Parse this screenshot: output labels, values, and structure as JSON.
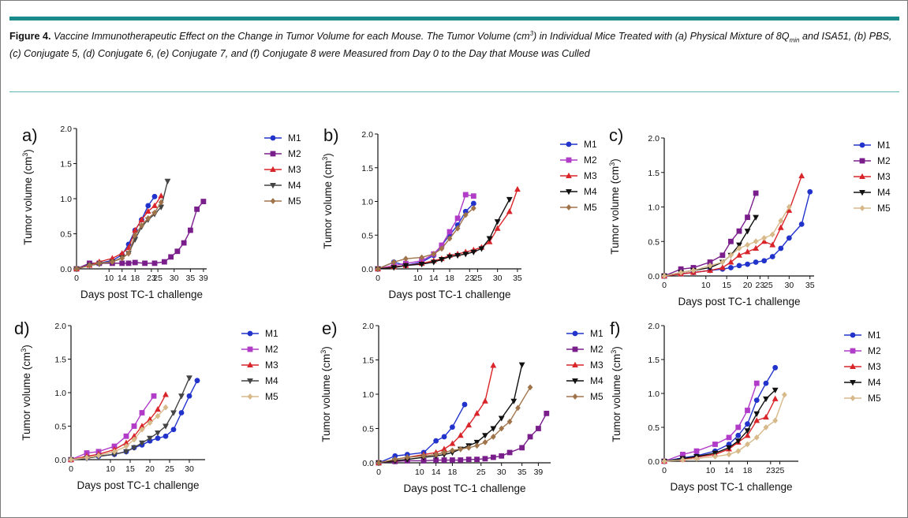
{
  "caption": {
    "label": "Figure 4.",
    "text_1": " Vaccine Immunotherapeutic Effect on the Change in Tumor Volume for each Mouse. The Tumor Volume (cm",
    "sup": "3",
    "text_2": ") in Individual Mice Treated with (a) Physical Mixture of 8Q",
    "sub": "min",
    "text_3": " and ISA51, (b) PBS, (c) Conjugate 5, (d) Conjugate 6, (e) Conjugate 7, and (f) Conjugate 8 were Measured from Day 0 to the Day that Mouse was Culled"
  },
  "colors": {
    "M1": "#2233cc",
    "M2": "#7a1e8c",
    "M3": "#d9252a",
    "M4": "#111111",
    "M5": "#a0744a"
  },
  "chart_data": [
    {
      "panel": "a)",
      "type": "line",
      "xlabel": "Days post TC-1 challenge",
      "ylabel": "Tumor volume (cm3)",
      "xlim": [
        0,
        40
      ],
      "ylim": [
        0,
        2.0
      ],
      "xticks": [
        0,
        10,
        14,
        18,
        23,
        25,
        30,
        35,
        39
      ],
      "yticks": [
        0.0,
        0.5,
        1.0,
        1.5,
        2.0
      ],
      "series": [
        {
          "name": "M1",
          "marker": "circle",
          "color": "#2233cc",
          "x": [
            0,
            4,
            7,
            11,
            14,
            16,
            18,
            20,
            22,
            24
          ],
          "y": [
            0,
            0.06,
            0.08,
            0.12,
            0.2,
            0.35,
            0.55,
            0.7,
            0.9,
            1.03
          ]
        },
        {
          "name": "M2",
          "marker": "square",
          "color": "#7a1e8c",
          "x": [
            0,
            4,
            7,
            11,
            14,
            16,
            18,
            21,
            24,
            27,
            29,
            31,
            33,
            35,
            37,
            39
          ],
          "y": [
            0,
            0.08,
            0.08,
            0.08,
            0.08,
            0.08,
            0.09,
            0.08,
            0.08,
            0.1,
            0.17,
            0.25,
            0.37,
            0.55,
            0.85,
            0.96
          ]
        },
        {
          "name": "M3",
          "marker": "triangle",
          "color": "#d9252a",
          "x": [
            0,
            4,
            7,
            11,
            14,
            16,
            18,
            20,
            22,
            24,
            26
          ],
          "y": [
            0,
            0.05,
            0.1,
            0.15,
            0.22,
            0.3,
            0.55,
            0.7,
            0.82,
            0.9,
            1.04
          ]
        },
        {
          "name": "M4",
          "marker": "triangle-down",
          "color": "#444444",
          "x": [
            0,
            4,
            7,
            11,
            14,
            16,
            18,
            20,
            22,
            24,
            26,
            28
          ],
          "y": [
            0,
            0.05,
            0.07,
            0.1,
            0.16,
            0.22,
            0.42,
            0.6,
            0.7,
            0.78,
            0.88,
            1.25
          ]
        },
        {
          "name": "M5",
          "marker": "diamond",
          "color": "#a0744a",
          "x": [
            0,
            4,
            7,
            11,
            14,
            16,
            18,
            20,
            22,
            24,
            26
          ],
          "y": [
            0,
            0.05,
            0.08,
            0.1,
            0.15,
            0.22,
            0.48,
            0.62,
            0.72,
            0.8,
            0.95
          ]
        }
      ]
    },
    {
      "panel": "b)",
      "type": "line",
      "xlabel": "Days post TC-1 challenge",
      "ylabel": "Tumor volume (cm3)",
      "xlim": [
        0,
        36
      ],
      "ylim": [
        0,
        2.0
      ],
      "xticks": [
        0,
        10,
        14,
        18,
        23,
        25,
        30,
        35
      ],
      "yticks": [
        0.0,
        0.5,
        1.0,
        1.5,
        2.0
      ],
      "series": [
        {
          "name": "M1",
          "marker": "circle",
          "color": "#2233cc",
          "x": [
            0,
            4,
            7,
            11,
            14,
            16,
            18,
            20,
            22,
            24
          ],
          "y": [
            0,
            0.1,
            0.05,
            0.1,
            0.2,
            0.35,
            0.5,
            0.65,
            0.85,
            0.97
          ]
        },
        {
          "name": "M2",
          "marker": "square",
          "color": "#b03cc8",
          "x": [
            0,
            4,
            7,
            11,
            14,
            16,
            18,
            20,
            22,
            24
          ],
          "y": [
            0,
            0.05,
            0.08,
            0.12,
            0.22,
            0.35,
            0.55,
            0.75,
            1.1,
            1.08
          ]
        },
        {
          "name": "M3",
          "marker": "triangle",
          "color": "#d9252a",
          "x": [
            0,
            4,
            7,
            11,
            14,
            16,
            18,
            20,
            22,
            24,
            26,
            28,
            30,
            33,
            35
          ],
          "y": [
            0,
            0.03,
            0.05,
            0.08,
            0.12,
            0.15,
            0.2,
            0.22,
            0.25,
            0.28,
            0.32,
            0.4,
            0.6,
            0.85,
            1.18
          ]
        },
        {
          "name": "M4",
          "marker": "triangle-down",
          "color": "#111111",
          "x": [
            0,
            4,
            7,
            11,
            14,
            16,
            18,
            20,
            22,
            24,
            26,
            28,
            30,
            33
          ],
          "y": [
            0,
            0.02,
            0.05,
            0.07,
            0.1,
            0.14,
            0.18,
            0.2,
            0.22,
            0.25,
            0.3,
            0.45,
            0.7,
            1.03
          ]
        },
        {
          "name": "M5",
          "marker": "diamond",
          "color": "#a0744a",
          "x": [
            0,
            4,
            7,
            11,
            14,
            16,
            18,
            20,
            22,
            24
          ],
          "y": [
            0,
            0.1,
            0.15,
            0.17,
            0.22,
            0.3,
            0.45,
            0.6,
            0.8,
            0.9
          ]
        }
      ]
    },
    {
      "panel": "c)",
      "type": "line",
      "xlabel": "Days post TC-1 challenge",
      "ylabel": "Tumor volume (cm3)",
      "xlim": [
        0,
        36
      ],
      "ylim": [
        0,
        2.0
      ],
      "xticks": [
        0,
        10,
        15,
        20,
        23,
        25,
        30,
        35
      ],
      "yticks": [
        0.0,
        0.5,
        1.0,
        1.5,
        2.0
      ],
      "series": [
        {
          "name": "M1",
          "marker": "circle",
          "color": "#2233cc",
          "x": [
            0,
            4,
            7,
            11,
            14,
            16,
            18,
            20,
            22,
            24,
            26,
            28,
            30,
            33,
            35
          ],
          "y": [
            0,
            0.03,
            0.05,
            0.08,
            0.1,
            0.12,
            0.15,
            0.17,
            0.2,
            0.22,
            0.28,
            0.4,
            0.55,
            0.75,
            1.22
          ]
        },
        {
          "name": "M2",
          "marker": "square",
          "color": "#7a1e8c",
          "x": [
            0,
            4,
            7,
            11,
            14,
            16,
            18,
            20,
            22
          ],
          "y": [
            0,
            0.1,
            0.12,
            0.2,
            0.3,
            0.5,
            0.65,
            0.85,
            1.2
          ]
        },
        {
          "name": "M3",
          "marker": "triangle",
          "color": "#d9252a",
          "x": [
            0,
            4,
            7,
            11,
            14,
            16,
            18,
            20,
            22,
            24,
            26,
            28,
            30,
            33
          ],
          "y": [
            0,
            0.03,
            0.05,
            0.08,
            0.12,
            0.2,
            0.3,
            0.35,
            0.4,
            0.5,
            0.45,
            0.7,
            0.95,
            1.45
          ]
        },
        {
          "name": "M4",
          "marker": "triangle-down",
          "color": "#111111",
          "x": [
            0,
            4,
            7,
            11,
            14,
            16,
            18,
            20,
            22
          ],
          "y": [
            0,
            0.05,
            0.08,
            0.12,
            0.2,
            0.3,
            0.45,
            0.65,
            0.85
          ]
        },
        {
          "name": "M5",
          "marker": "diamond",
          "color": "#d7b98a",
          "x": [
            0,
            4,
            7,
            11,
            14,
            16,
            18,
            20,
            22,
            24,
            26,
            28,
            30
          ],
          "y": [
            0,
            0.05,
            0.08,
            0.15,
            0.2,
            0.3,
            0.4,
            0.45,
            0.5,
            0.55,
            0.6,
            0.8,
            1.0
          ]
        }
      ]
    },
    {
      "panel": "d)",
      "type": "line",
      "xlabel": "Days post TC-1 challenge",
      "ylabel": "Tumor volume (cm3)",
      "xlim": [
        0,
        34
      ],
      "ylim": [
        0,
        2.0
      ],
      "xticks": [
        0,
        10,
        15,
        20,
        25,
        30
      ],
      "yticks": [
        0.0,
        0.5,
        1.0,
        1.5,
        2.0
      ],
      "series": [
        {
          "name": "M1",
          "marker": "circle",
          "color": "#2233cc",
          "x": [
            0,
            4,
            7,
            11,
            14,
            16,
            18,
            20,
            22,
            24,
            26,
            28,
            30,
            32
          ],
          "y": [
            0,
            0.03,
            0.05,
            0.08,
            0.12,
            0.18,
            0.22,
            0.28,
            0.32,
            0.35,
            0.45,
            0.7,
            0.95,
            1.18
          ]
        },
        {
          "name": "M2",
          "marker": "square",
          "color": "#b03cc8",
          "x": [
            0,
            4,
            7,
            11,
            14,
            16,
            18,
            21
          ],
          "y": [
            0,
            0.1,
            0.12,
            0.2,
            0.35,
            0.5,
            0.7,
            0.95
          ]
        },
        {
          "name": "M3",
          "marker": "triangle",
          "color": "#d9252a",
          "x": [
            0,
            4,
            7,
            11,
            14,
            16,
            18,
            20,
            22,
            24
          ],
          "y": [
            0,
            0.05,
            0.08,
            0.15,
            0.25,
            0.35,
            0.5,
            0.6,
            0.75,
            0.97
          ]
        },
        {
          "name": "M4",
          "marker": "triangle-down",
          "color": "#444444",
          "x": [
            0,
            4,
            7,
            11,
            14,
            16,
            18,
            20,
            22,
            24,
            26,
            28,
            30
          ],
          "y": [
            0,
            0.02,
            0.05,
            0.08,
            0.12,
            0.18,
            0.25,
            0.32,
            0.4,
            0.5,
            0.7,
            0.95,
            1.22
          ]
        },
        {
          "name": "M5",
          "marker": "diamond",
          "color": "#d7b98a",
          "x": [
            0,
            4,
            7,
            11,
            14,
            16,
            18,
            20,
            22,
            24
          ],
          "y": [
            0,
            0.03,
            0.06,
            0.12,
            0.2,
            0.3,
            0.45,
            0.55,
            0.65,
            0.78
          ]
        }
      ]
    },
    {
      "panel": "e)",
      "type": "line",
      "xlabel": "Days post TC-1 challenge",
      "ylabel": "Tumor volume (cm3)",
      "xlim": [
        0,
        42
      ],
      "ylim": [
        0,
        2.0
      ],
      "xticks": [
        0,
        10,
        14,
        18,
        25,
        30,
        35,
        39
      ],
      "yticks": [
        0.0,
        0.5,
        1.0,
        1.5,
        2.0
      ],
      "series": [
        {
          "name": "M1",
          "marker": "circle",
          "color": "#2233cc",
          "x": [
            0,
            4,
            7,
            11,
            14,
            16,
            18,
            21
          ],
          "y": [
            0,
            0.1,
            0.12,
            0.15,
            0.32,
            0.38,
            0.52,
            0.85
          ]
        },
        {
          "name": "M2",
          "marker": "square",
          "color": "#7a1e8c",
          "x": [
            0,
            4,
            7,
            11,
            14,
            16,
            18,
            20,
            22,
            24,
            26,
            28,
            30,
            32,
            35,
            37,
            39,
            41
          ],
          "y": [
            0,
            0.02,
            0.03,
            0.03,
            0.04,
            0.04,
            0.04,
            0.04,
            0.05,
            0.05,
            0.06,
            0.08,
            0.1,
            0.15,
            0.22,
            0.38,
            0.5,
            0.72
          ]
        },
        {
          "name": "M3",
          "marker": "triangle",
          "color": "#d9252a",
          "x": [
            0,
            4,
            7,
            11,
            14,
            16,
            18,
            20,
            22,
            24,
            26,
            28
          ],
          "y": [
            0,
            0.05,
            0.08,
            0.12,
            0.15,
            0.2,
            0.28,
            0.4,
            0.55,
            0.72,
            0.9,
            1.42
          ]
        },
        {
          "name": "M4",
          "marker": "triangle-down",
          "color": "#111111",
          "x": [
            0,
            4,
            7,
            11,
            14,
            16,
            18,
            20,
            22,
            24,
            26,
            28,
            30,
            33,
            35
          ],
          "y": [
            0,
            0.03,
            0.05,
            0.08,
            0.1,
            0.12,
            0.15,
            0.2,
            0.25,
            0.3,
            0.4,
            0.5,
            0.65,
            0.9,
            1.43
          ]
        },
        {
          "name": "M5",
          "marker": "diamond",
          "color": "#a0744a",
          "x": [
            0,
            4,
            7,
            11,
            14,
            16,
            18,
            20,
            22,
            24,
            26,
            28,
            30,
            32,
            34,
            37
          ],
          "y": [
            0,
            0.05,
            0.08,
            0.1,
            0.12,
            0.15,
            0.18,
            0.2,
            0.22,
            0.25,
            0.3,
            0.38,
            0.5,
            0.6,
            0.8,
            1.1
          ]
        }
      ]
    },
    {
      "panel": "f)",
      "type": "line",
      "xlabel": "Days post TC-1 challenge",
      "ylabel": "Tumor volume (cm3)",
      "xlim": [
        0,
        29
      ],
      "ylim": [
        0,
        2.0
      ],
      "xticks": [
        0,
        10,
        14,
        18,
        23,
        25
      ],
      "yticks": [
        0.0,
        0.5,
        1.0,
        1.5,
        2.0
      ],
      "series": [
        {
          "name": "M1",
          "marker": "circle",
          "color": "#2233cc",
          "x": [
            0,
            4,
            7,
            11,
            14,
            16,
            18,
            20,
            22,
            24
          ],
          "y": [
            0,
            0.05,
            0.08,
            0.15,
            0.25,
            0.38,
            0.55,
            0.9,
            1.15,
            1.38
          ]
        },
        {
          "name": "M2",
          "marker": "square",
          "color": "#b03cc8",
          "x": [
            0,
            4,
            7,
            11,
            14,
            16,
            18,
            20
          ],
          "y": [
            0,
            0.1,
            0.15,
            0.25,
            0.35,
            0.5,
            0.75,
            1.15
          ]
        },
        {
          "name": "M3",
          "marker": "triangle",
          "color": "#d9252a",
          "x": [
            0,
            4,
            7,
            11,
            14,
            16,
            18,
            20,
            22,
            24
          ],
          "y": [
            0,
            0.03,
            0.06,
            0.1,
            0.18,
            0.28,
            0.38,
            0.6,
            0.65,
            0.92
          ]
        },
        {
          "name": "M4",
          "marker": "triangle-down",
          "color": "#111111",
          "x": [
            0,
            4,
            7,
            11,
            14,
            16,
            18,
            20,
            22,
            24
          ],
          "y": [
            0,
            0.04,
            0.07,
            0.12,
            0.2,
            0.3,
            0.45,
            0.7,
            0.92,
            1.05
          ]
        },
        {
          "name": "M5",
          "marker": "diamond",
          "color": "#d7b98a",
          "x": [
            0,
            4,
            7,
            11,
            14,
            16,
            18,
            20,
            22,
            24,
            26
          ],
          "y": [
            0,
            0.02,
            0.04,
            0.07,
            0.1,
            0.15,
            0.25,
            0.35,
            0.5,
            0.6,
            0.98
          ]
        }
      ]
    }
  ]
}
